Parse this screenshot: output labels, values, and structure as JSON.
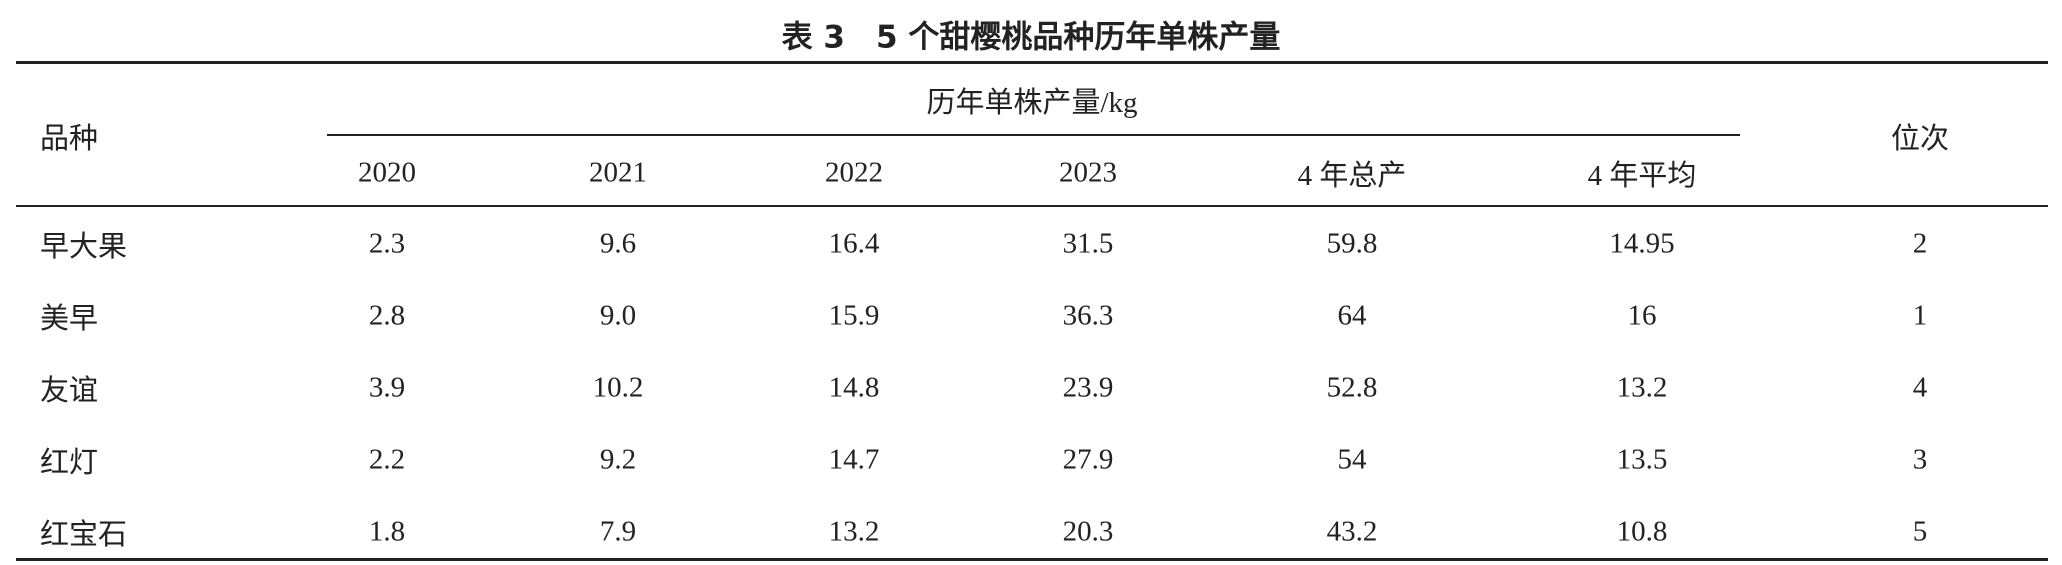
{
  "title": "表 3　5 个甜樱桃品种历年单株产量",
  "table": {
    "header": {
      "variety": "品种",
      "group": "历年单株产量/kg",
      "rank": "位次",
      "columns": [
        "2020",
        "2021",
        "2022",
        "2023",
        "4 年总产",
        "4 年平均"
      ]
    },
    "rows": [
      [
        "早大果",
        "2.3",
        "9.6",
        "16.4",
        "31.5",
        "59.8",
        "14.95",
        "2"
      ],
      [
        "美早",
        "2.8",
        "9.0",
        "15.9",
        "36.3",
        "64",
        "16",
        "1"
      ],
      [
        "友谊",
        "3.9",
        "10.2",
        "14.8",
        "23.9",
        "52.8",
        "13.2",
        "4"
      ],
      [
        "红灯",
        "2.2",
        "9.2",
        "14.7",
        "27.9",
        "54",
        "13.5",
        "3"
      ],
      [
        "红宝石",
        "1.8",
        "7.9",
        "13.2",
        "20.3",
        "43.2",
        "10.8",
        "5"
      ]
    ]
  }
}
